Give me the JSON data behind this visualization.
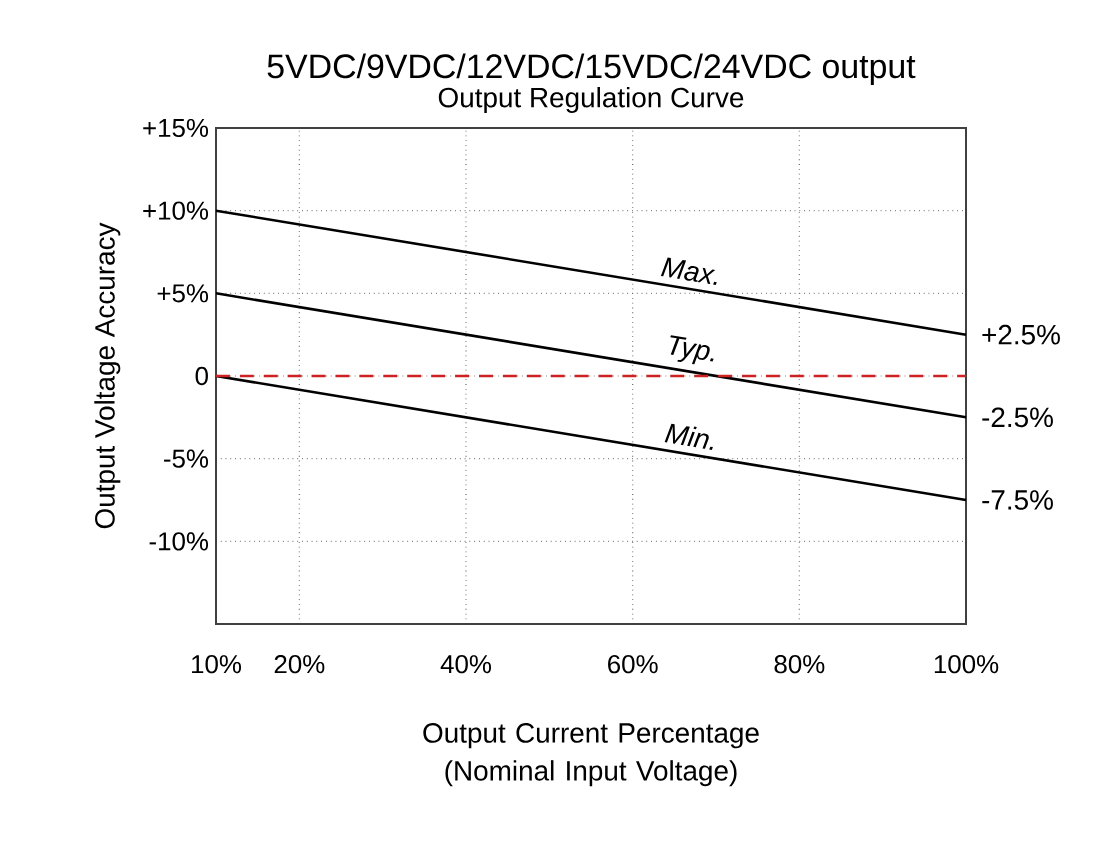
{
  "chart_data": {
    "type": "line",
    "title": "5VDC/9VDC/12VDC/15VDC/24VDC output",
    "subtitle": "Output Regulation Curve",
    "xlabel": "Output Current Percentage (Nominal Input Voltage)",
    "ylabel": "Output Voltage Accuracy",
    "x": [
      10,
      100
    ],
    "series": [
      {
        "name": "Max.",
        "color": "#000000",
        "values": [
          10,
          2.5
        ]
      },
      {
        "name": "Typ.",
        "color": "#000000",
        "values": [
          5,
          -2.5
        ]
      },
      {
        "name": "Min.",
        "color": "#000000",
        "values": [
          0,
          -7.5
        ]
      }
    ],
    "xlim": [
      10,
      100
    ],
    "ylim": [
      -15,
      15
    ],
    "xticks": [
      {
        "value": 10,
        "label": "10%"
      },
      {
        "value": 20,
        "label": "20%"
      },
      {
        "value": 40,
        "label": "40%"
      },
      {
        "value": 60,
        "label": "60%"
      },
      {
        "value": 80,
        "label": "80%"
      },
      {
        "value": 100,
        "label": "100%"
      }
    ],
    "yticks": [
      {
        "value": -10,
        "label": "-10%"
      },
      {
        "value": -5,
        "label": "-5%"
      },
      0,
      {
        "value": 5,
        "label": "+5%"
      },
      {
        "value": 10,
        "label": "+10%"
      },
      {
        "value": 15,
        "label": "+15%"
      }
    ],
    "ref_lines": [
      {
        "axis": "y",
        "value": 0,
        "color": "#cc2222",
        "line_style": "dashed"
      }
    ],
    "annotations": [
      "+2.5%",
      "-2.5%",
      "-7.5%"
    ],
    "grid": true,
    "marker": "none",
    "line_style": "solid"
  }
}
